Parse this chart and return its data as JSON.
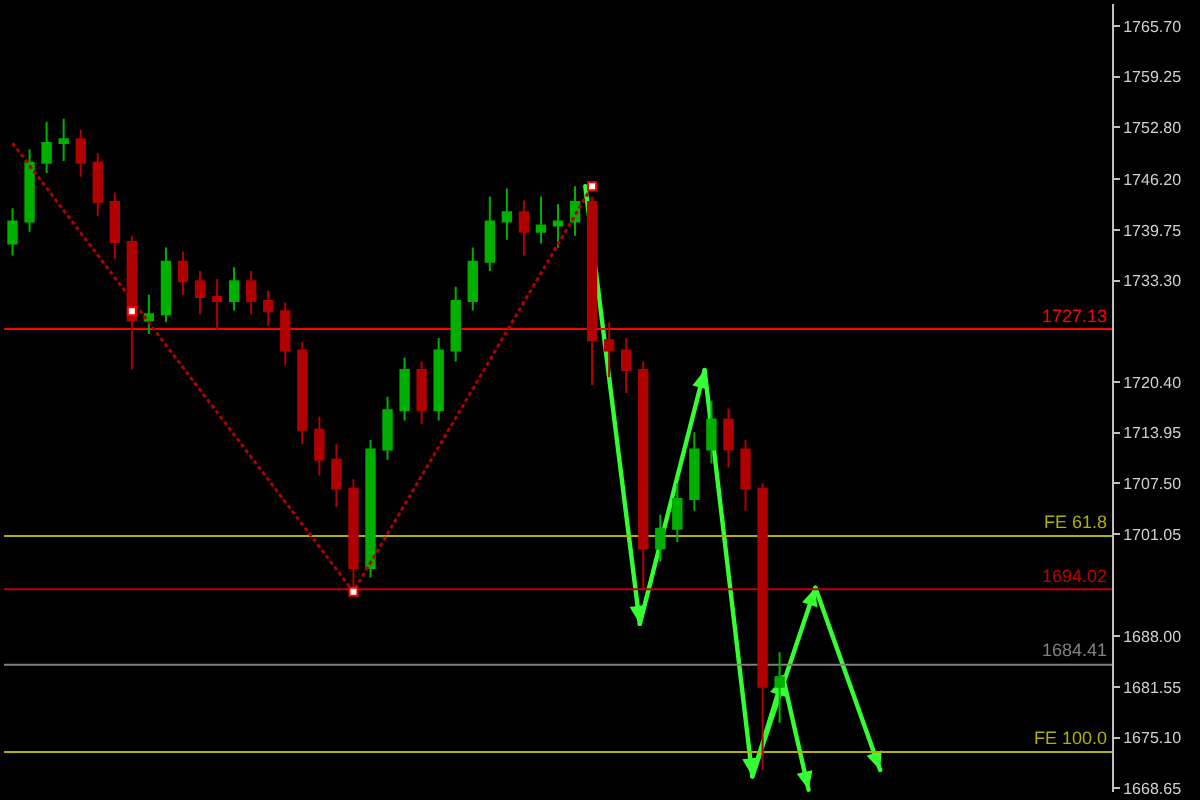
{
  "chart_data": {
    "type": "candlestick",
    "categories": [
      null,
      null,
      null,
      null,
      null,
      null,
      null,
      null,
      null,
      null,
      null,
      null,
      null,
      null,
      null,
      null,
      null,
      null,
      null,
      null,
      null,
      null,
      null,
      null,
      null,
      null,
      null,
      null,
      null,
      null,
      null,
      null,
      null,
      null,
      null,
      null,
      null,
      null,
      null,
      null,
      null,
      null,
      null,
      null,
      null,
      null,
      null,
      null,
      null,
      null,
      null,
      null,
      null,
      null,
      null,
      null,
      null,
      null,
      null,
      null,
      null,
      null,
      null,
      null,
      null
    ],
    "ohlc": [
      [
        1738.0,
        1742.5,
        1736.5,
        1740.8
      ],
      [
        1740.8,
        1750.0,
        1739.5,
        1748.3
      ],
      [
        1748.3,
        1753.5,
        1747.0,
        1750.8
      ],
      [
        1750.8,
        1753.9,
        1748.5,
        1751.3
      ],
      [
        1751.3,
        1752.5,
        1746.5,
        1748.3
      ],
      [
        1748.3,
        1749.5,
        1741.5,
        1743.3
      ],
      [
        1743.3,
        1744.5,
        1736.0,
        1738.2
      ],
      [
        1738.2,
        1739.0,
        1722.0,
        1728.2
      ],
      [
        1728.2,
        1731.5,
        1726.5,
        1729.0
      ],
      [
        1729.0,
        1737.5,
        1728.0,
        1735.7
      ],
      [
        1735.7,
        1737.0,
        1731.5,
        1733.2
      ],
      [
        1733.2,
        1734.5,
        1729.0,
        1731.2
      ],
      [
        1731.2,
        1733.5,
        1727.0,
        1730.7
      ],
      [
        1730.7,
        1735.0,
        1729.5,
        1733.2
      ],
      [
        1733.2,
        1734.5,
        1729.0,
        1730.7
      ],
      [
        1730.7,
        1732.0,
        1727.5,
        1729.4
      ],
      [
        1729.4,
        1730.5,
        1722.5,
        1724.4
      ],
      [
        1724.4,
        1725.5,
        1712.5,
        1714.3
      ],
      [
        1714.3,
        1716.0,
        1708.5,
        1710.5
      ],
      [
        1710.5,
        1712.5,
        1704.5,
        1706.8
      ],
      [
        1706.8,
        1708.0,
        1694.2,
        1696.7
      ],
      [
        1696.7,
        1713.0,
        1695.5,
        1711.8
      ],
      [
        1711.8,
        1718.5,
        1710.5,
        1716.8
      ],
      [
        1716.8,
        1723.5,
        1715.5,
        1721.9
      ],
      [
        1721.9,
        1723.0,
        1715.0,
        1716.8
      ],
      [
        1716.8,
        1726.0,
        1715.5,
        1724.4
      ],
      [
        1724.4,
        1732.5,
        1723.0,
        1730.7
      ],
      [
        1730.7,
        1737.5,
        1729.5,
        1735.7
      ],
      [
        1735.7,
        1744.0,
        1734.5,
        1740.8
      ],
      [
        1740.8,
        1745.0,
        1738.5,
        1742.0
      ],
      [
        1742.0,
        1743.5,
        1736.5,
        1739.5
      ],
      [
        1739.5,
        1744.0,
        1738.0,
        1740.3
      ],
      [
        1740.3,
        1743.0,
        1737.5,
        1740.8
      ],
      [
        1740.8,
        1745.3,
        1739.0,
        1743.3
      ],
      [
        1743.3,
        1744.0,
        1720.0,
        1725.7
      ],
      [
        1725.7,
        1728.0,
        1721.0,
        1724.4
      ],
      [
        1724.4,
        1726.0,
        1719.0,
        1721.9
      ],
      [
        1721.9,
        1723.0,
        1694.0,
        1699.2
      ],
      [
        1699.2,
        1703.5,
        1697.5,
        1701.7
      ],
      [
        1701.7,
        1707.5,
        1700.0,
        1705.5
      ],
      [
        1705.5,
        1714.0,
        1704.0,
        1711.8
      ],
      [
        1711.8,
        1718.0,
        1710.0,
        1715.6
      ],
      [
        1715.6,
        1717.0,
        1709.5,
        1711.8
      ],
      [
        1711.8,
        1713.0,
        1704.0,
        1706.8
      ],
      [
        1706.8,
        1707.5,
        1671.0,
        1681.6
      ],
      [
        1681.6,
        1686.0,
        1677.0,
        1682.8
      ],
      null,
      null,
      null,
      null,
      null,
      null,
      null,
      null,
      null,
      null,
      null,
      null,
      null,
      null,
      null,
      null,
      null,
      null,
      null
    ],
    "series": [
      {
        "type": "line",
        "color": "#b00000",
        "line_style": "dotted",
        "values": [
          1750.8,
          null,
          null,
          null,
          null,
          null,
          null,
          null,
          null,
          null,
          null,
          null,
          null,
          null,
          null,
          null,
          null,
          null,
          null,
          null,
          1693.7,
          null,
          null,
          null,
          null,
          null,
          null,
          null,
          null,
          null,
          null,
          null,
          null,
          null,
          1745.3,
          null,
          null,
          null,
          null,
          null,
          null,
          null,
          null,
          null,
          null,
          null,
          null,
          null,
          null,
          null,
          null,
          null,
          null,
          null,
          null,
          null,
          null,
          null,
          null,
          null,
          null,
          null,
          null,
          null,
          null
        ]
      },
      {
        "type": "scatter",
        "color": "#ffffff",
        "marker": "square",
        "values": [
          null,
          null,
          null,
          null,
          null,
          null,
          null,
          1729.4,
          null,
          null,
          null,
          null,
          null,
          null,
          null,
          null,
          null,
          null,
          null,
          null,
          1693.7,
          null,
          null,
          null,
          null,
          null,
          null,
          null,
          null,
          null,
          null,
          null,
          null,
          null,
          null,
          null,
          null,
          null,
          null,
          null,
          null,
          null,
          null,
          null,
          null,
          null,
          null,
          null,
          null,
          null,
          null,
          null,
          null,
          null,
          null,
          null,
          null,
          null,
          null,
          null,
          null,
          null,
          null,
          null,
          null
        ]
      },
      {
        "type": "scatter",
        "color": "#ffffff",
        "marker": "square",
        "values": [
          null,
          null,
          null,
          null,
          null,
          null,
          null,
          null,
          null,
          null,
          null,
          null,
          null,
          null,
          null,
          null,
          null,
          null,
          null,
          null,
          null,
          null,
          null,
          null,
          null,
          null,
          null,
          null,
          null,
          null,
          null,
          null,
          null,
          null,
          1745.3,
          null,
          null,
          null,
          null,
          null,
          null,
          null,
          null,
          null,
          null,
          null,
          null,
          null,
          null,
          null,
          null,
          null,
          null,
          null,
          null,
          null,
          null,
          null,
          null,
          null,
          null,
          null,
          null,
          null,
          null
        ]
      }
    ],
    "ref_lines": [
      {
        "axis": "y",
        "value": 1727.13,
        "label": "1727.13",
        "color": "#ff0000"
      },
      {
        "axis": "y",
        "value": 1700.8,
        "label": "FE 61.8",
        "color": "#b0b000"
      },
      {
        "axis": "y",
        "value": 1694.02,
        "label": "1694.02",
        "color": "#c00000"
      },
      {
        "axis": "y",
        "value": 1684.41,
        "label": "1684.41",
        "color": "#808080"
      },
      {
        "axis": "y",
        "value": 1673.3,
        "label": "FE 100.0",
        "color": "#b0b000"
      }
    ],
    "ylim": [
      1668.2,
      1768.5
    ],
    "yticks": [
      {
        "value": 1765.7,
        "label": "1765.70"
      },
      {
        "value": 1759.25,
        "label": "1759.25"
      },
      {
        "value": 1752.8,
        "label": "1752.80"
      },
      {
        "value": 1746.2,
        "label": "1746.20"
      },
      {
        "value": 1739.75,
        "label": "1739.75"
      },
      {
        "value": 1733.3,
        "label": "1733.30"
      },
      {
        "value": 1720.4,
        "label": "1720.40"
      },
      {
        "value": 1713.95,
        "label": "1713.95"
      },
      {
        "value": 1707.5,
        "label": "1707.50"
      },
      {
        "value": 1701.05,
        "label": "1701.05"
      },
      {
        "value": 1688,
        "label": "1688.00"
      },
      {
        "value": 1681.55,
        "label": "1681.55"
      },
      {
        "value": 1675.1,
        "label": "1675.10"
      },
      {
        "value": 1668.65,
        "label": "1668.65"
      }
    ],
    "grid": false
  }
}
